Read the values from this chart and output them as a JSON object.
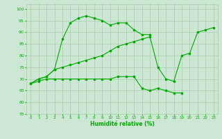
{
  "xlabel": "Humidité relative (%)",
  "xlim": [
    -0.5,
    23.5
  ],
  "ylim": [
    55,
    102
  ],
  "yticks": [
    55,
    60,
    65,
    70,
    75,
    80,
    85,
    90,
    95,
    100
  ],
  "xticks": [
    0,
    1,
    2,
    3,
    4,
    5,
    6,
    7,
    8,
    9,
    10,
    11,
    12,
    13,
    14,
    15,
    16,
    17,
    18,
    19,
    20,
    21,
    22,
    23
  ],
  "bg_color": "#cce8d4",
  "grid_color": "#aaccaa",
  "line_color": "#00aa00",
  "line1_x": [
    0,
    1,
    2,
    3,
    4,
    5,
    6,
    7,
    8,
    9,
    10,
    11,
    12,
    13,
    14,
    15
  ],
  "line1_y": [
    68,
    70,
    71,
    74,
    87,
    94,
    96,
    97,
    96,
    95,
    93,
    94,
    94,
    91,
    89,
    89
  ],
  "line2_x": [
    0,
    1,
    2,
    3,
    4,
    5,
    6,
    7,
    8,
    9,
    10,
    11,
    12,
    13,
    14,
    15,
    16,
    17,
    18,
    19,
    20,
    21,
    22,
    23
  ],
  "line2_y": [
    68,
    70,
    71,
    74,
    75,
    76,
    77,
    78,
    79,
    80,
    82,
    84,
    85,
    86,
    87,
    88,
    75,
    70,
    69,
    80,
    81,
    90,
    91,
    92
  ],
  "line3_x": [
    0,
    1,
    2,
    3,
    4,
    5,
    6,
    7,
    8,
    9,
    10,
    11,
    12,
    13,
    14,
    15,
    16,
    17,
    18,
    19
  ],
  "line3_y": [
    68,
    69,
    70,
    70,
    70,
    70,
    70,
    70,
    70,
    70,
    70,
    71,
    71,
    71,
    66,
    65,
    66,
    65,
    64,
    64
  ]
}
